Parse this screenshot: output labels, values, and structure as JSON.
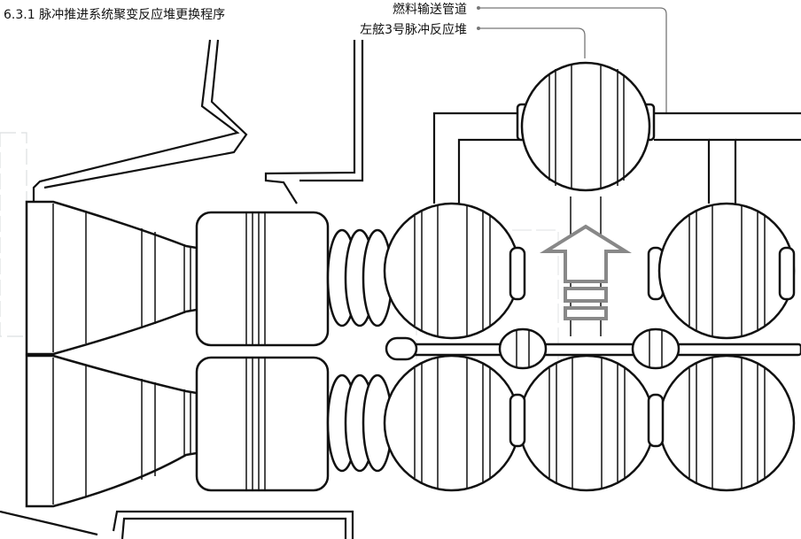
{
  "title": "6.3.1 脉冲推进系统聚变反应堆更换程序",
  "callouts": {
    "fuel_line": "燃料输送管道",
    "reactor": "左舷3号脉冲反应堆"
  },
  "colors": {
    "ink": "#111111",
    "background": "#ffffff",
    "arrow": "#888888",
    "leader": "#777777",
    "bleed_text": "#9aa3a8"
  }
}
